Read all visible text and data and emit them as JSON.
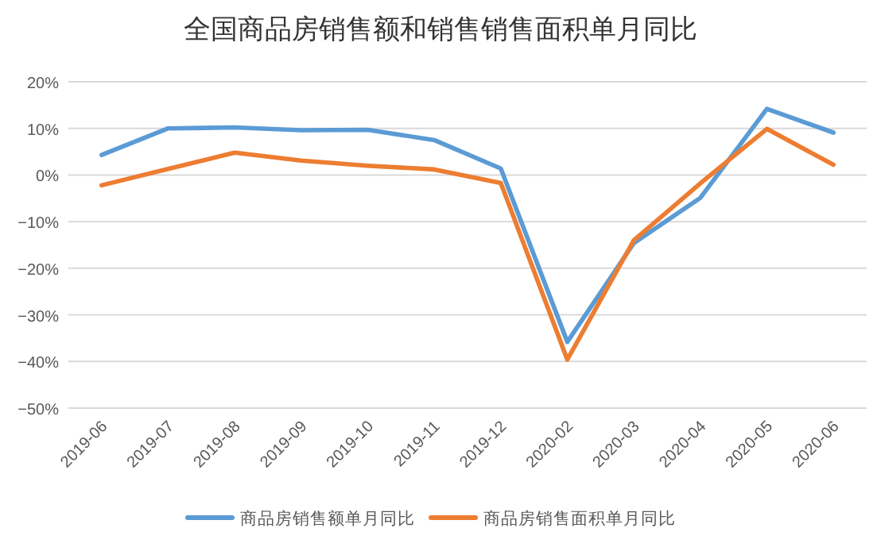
{
  "chart_data": {
    "type": "line",
    "title": "全国商品房销售额和销售销售面积单月同比",
    "categories": [
      "2019-06",
      "2019-07",
      "2019-08",
      "2019-09",
      "2019-10",
      "2019-11",
      "2019-12",
      "2020-02",
      "2020-03",
      "2020-04",
      "2020-05",
      "2020-06"
    ],
    "series": [
      {
        "name": "商品房销售额单月同比",
        "color": "#5b9bd5",
        "values": [
          4.3,
          10.0,
          10.2,
          9.6,
          9.7,
          7.5,
          1.4,
          -35.8,
          -14.6,
          -4.9,
          14.2,
          9.1
        ]
      },
      {
        "name": "商品房销售面积单月同比",
        "color": "#ed7d31",
        "values": [
          -2.2,
          1.3,
          4.8,
          3.1,
          2.0,
          1.2,
          -1.7,
          -39.6,
          -14.0,
          -1.8,
          9.9,
          2.2
        ]
      }
    ],
    "ylim": [
      -50,
      20
    ],
    "yticks": [
      {
        "value": -50,
        "label": "−50%"
      },
      {
        "value": -40,
        "label": "−40%"
      },
      {
        "value": -30,
        "label": "−30%"
      },
      {
        "value": -20,
        "label": "−20%"
      },
      {
        "value": -10,
        "label": "−10%"
      },
      {
        "value": 0,
        "label": "0%"
      },
      {
        "value": 10,
        "label": "10%"
      },
      {
        "value": 20,
        "label": "20%"
      }
    ],
    "grid": "y",
    "legend": "bottom",
    "line_style": "solid",
    "marker": "none"
  }
}
